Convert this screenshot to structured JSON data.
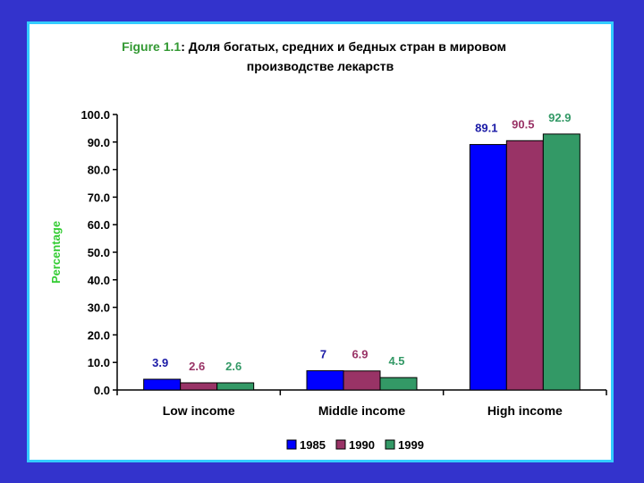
{
  "chart_data": {
    "type": "bar",
    "title_prefix": "Figure 1.1",
    "title_rest": ": Доля богатых, средних и бедных стран в мировом",
    "title_line2": "производстве лекарств",
    "ylabel": "Percentage",
    "xlabel": "",
    "ylim": [
      0,
      100
    ],
    "yticks": [
      "0.0",
      "10.0",
      "20.0",
      "30.0",
      "40.0",
      "50.0",
      "60.0",
      "70.0",
      "80.0",
      "90.0",
      "100.0"
    ],
    "categories": [
      "Low income",
      "Middle income",
      "High income"
    ],
    "series": [
      {
        "name": "1985",
        "values": [
          3.9,
          7,
          89.1
        ],
        "labels": [
          "3.9",
          "7",
          "89.1"
        ],
        "color": "#0000ff",
        "label_color": "#1a1aa6"
      },
      {
        "name": "1990",
        "values": [
          2.6,
          6.9,
          90.5
        ],
        "labels": [
          "2.6",
          "6.9",
          "90.5"
        ],
        "color": "#993366",
        "label_color": "#993366"
      },
      {
        "name": "1999",
        "values": [
          2.6,
          4.5,
          92.9
        ],
        "labels": [
          "2.6",
          "4.5",
          "92.9"
        ],
        "color": "#339966",
        "label_color": "#339966"
      }
    ],
    "legend_position": "bottom",
    "grid": false,
    "colors": {
      "title_prefix": "#339933",
      "ylabel": "#33cc33",
      "background": "#3333cc",
      "frame": "#33ccff"
    }
  }
}
